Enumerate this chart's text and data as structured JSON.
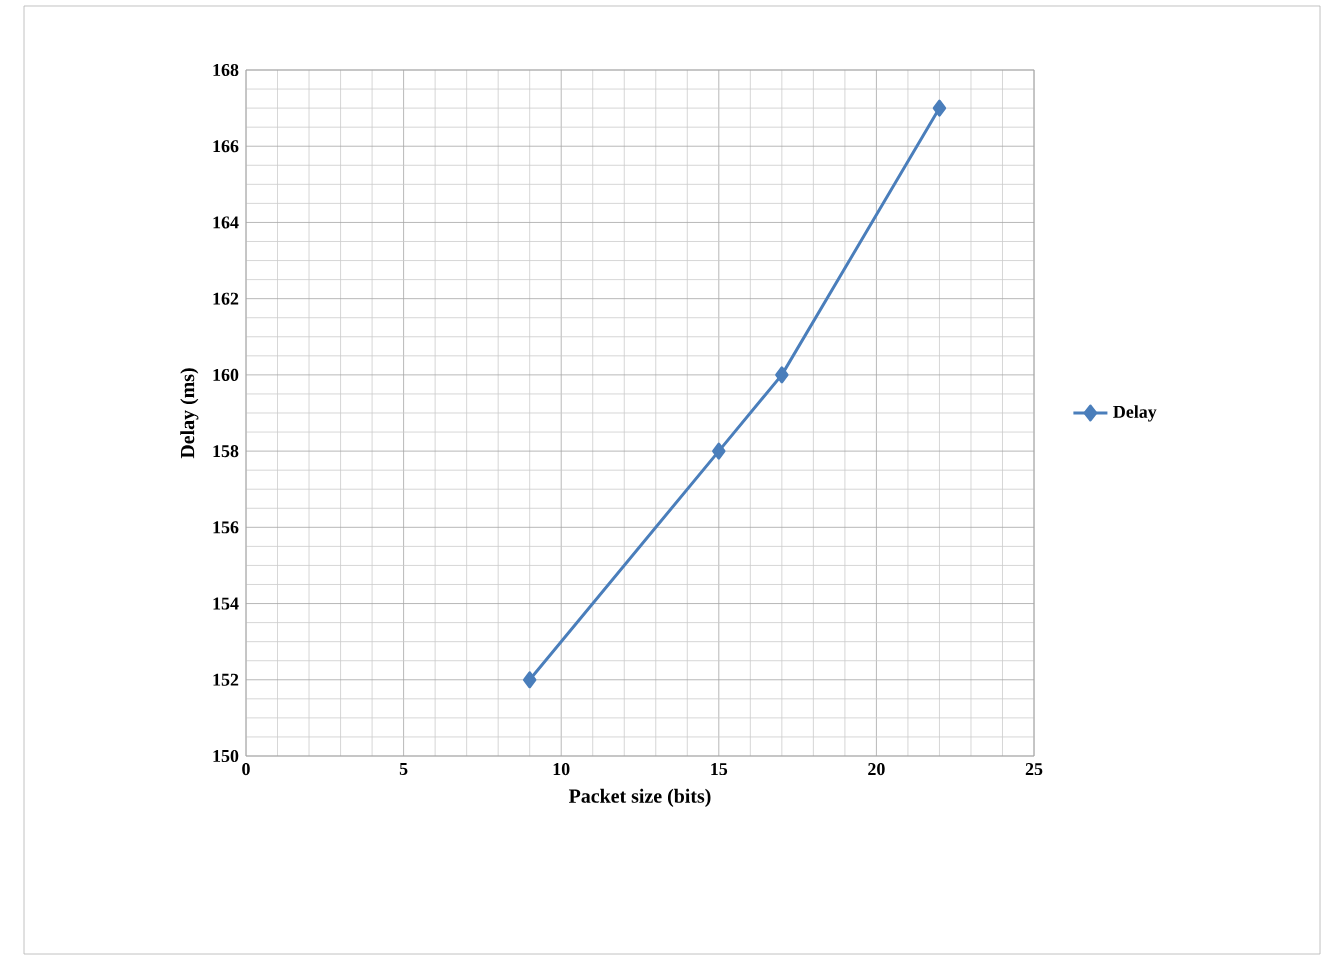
{
  "chart_data": {
    "type": "line",
    "xlabel": "Packet size (bits)",
    "ylabel": "Delay (ms)",
    "x": [
      9,
      15,
      17,
      22
    ],
    "series": [
      {
        "name": "Delay",
        "color": "#4a7ebb",
        "values": [
          152,
          158,
          160,
          167
        ]
      }
    ],
    "xlim": [
      0,
      25
    ],
    "ylim": [
      150,
      168
    ],
    "xticks": [
      0,
      5,
      10,
      15,
      20,
      25
    ],
    "yticks": [
      150,
      152,
      154,
      156,
      158,
      160,
      162,
      164,
      166,
      168
    ],
    "grid": true,
    "legend": "right",
    "marker": "diamond",
    "line_style": "solid"
  }
}
